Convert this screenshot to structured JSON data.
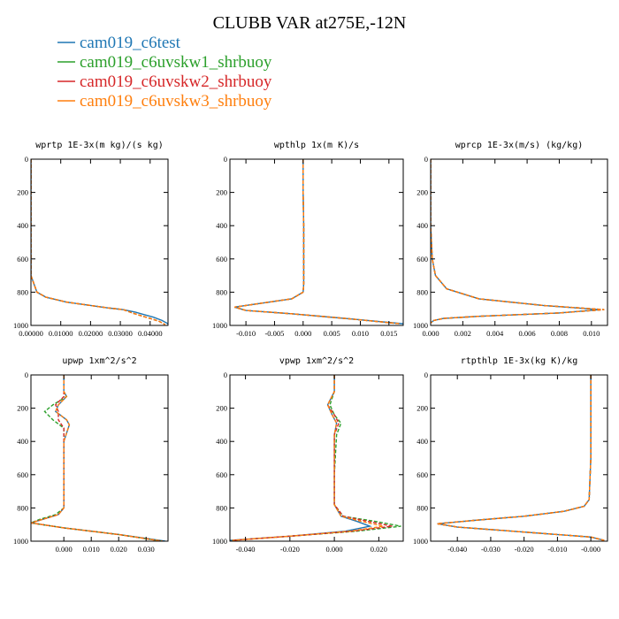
{
  "figure": {
    "title": "CLUBB VAR at275E,-12N",
    "colors": {
      "cam019_c6test": "#1f77b4",
      "cam019_c6uvskw1_shrbuoy": "#2ca02c",
      "cam019_c6uvskw2_shrbuoy": "#d62728",
      "cam019_c6uvskw3_shrbuoy": "#ff7f0e"
    }
  },
  "legend": [
    {
      "label": "cam019_c6test",
      "color": "#1f77b4",
      "dash": "solid"
    },
    {
      "label": "cam019_c6uvskw1_shrbuoy",
      "color": "#2ca02c",
      "dash": "dash"
    },
    {
      "label": "cam019_c6uvskw2_shrbuoy",
      "color": "#d62728",
      "dash": "dash"
    },
    {
      "label": "cam019_c6uvskw3_shrbuoy",
      "color": "#ff7f0e",
      "dash": "dash"
    }
  ],
  "chart_data": [
    {
      "type": "line",
      "title": "wprtp  1E-3x(m kg)/(s kg)",
      "xlim": [
        0.0,
        0.046
      ],
      "ylim": [
        1000,
        0
      ],
      "xticks": [
        0.0,
        0.01,
        0.02,
        0.03,
        0.04
      ],
      "xticklabels": [
        "0.00000",
        "0.01000",
        "0.02000",
        "0.03000",
        "0.04000"
      ],
      "yticks": [
        0,
        200,
        400,
        600,
        800,
        1000
      ],
      "series": [
        {
          "name": "cam019_c6test",
          "x": [
            0.0,
            0.0,
            0.0,
            0.0,
            0.002,
            0.005,
            0.012,
            0.02,
            0.026,
            0.031,
            0.035,
            0.038,
            0.041,
            0.044,
            0.046
          ],
          "y": [
            0,
            200,
            400,
            700,
            800,
            830,
            860,
            880,
            895,
            905,
            920,
            935,
            950,
            970,
            990
          ]
        },
        {
          "name": "cam019_c6uvskw1_shrbuoy",
          "x": [
            0.0,
            0.0,
            0.0,
            0.0,
            0.002,
            0.005,
            0.012,
            0.02,
            0.026,
            0.031,
            0.034,
            0.037,
            0.04,
            0.043,
            0.045
          ],
          "y": [
            0,
            200,
            400,
            700,
            800,
            830,
            860,
            880,
            895,
            905,
            925,
            942,
            958,
            975,
            995
          ]
        },
        {
          "name": "cam019_c6uvskw2_shrbuoy",
          "x": [
            0.0,
            0.0,
            0.0,
            0.0,
            0.002,
            0.005,
            0.012,
            0.02,
            0.026,
            0.031,
            0.034,
            0.037,
            0.04,
            0.043,
            0.045
          ],
          "y": [
            0,
            200,
            400,
            700,
            800,
            830,
            860,
            880,
            895,
            905,
            925,
            942,
            958,
            975,
            995
          ]
        },
        {
          "name": "cam019_c6uvskw3_shrbuoy",
          "x": [
            0.0,
            0.0,
            0.0,
            0.0,
            0.002,
            0.005,
            0.012,
            0.02,
            0.026,
            0.031,
            0.034,
            0.037,
            0.04,
            0.043,
            0.045
          ],
          "y": [
            0,
            200,
            400,
            700,
            800,
            830,
            860,
            880,
            895,
            905,
            925,
            942,
            958,
            975,
            995
          ]
        }
      ]
    },
    {
      "type": "line",
      "title": "wpthlp  1x(m K)/s",
      "xlim": [
        -0.0128,
        0.0175
      ],
      "ylim": [
        1000,
        0
      ],
      "xticks": [
        -0.01,
        -0.005,
        0.0,
        0.005,
        0.01,
        0.015
      ],
      "xticklabels": [
        "-0.010",
        "-0.005",
        "0.000",
        "0.005",
        "0.010",
        "0.015"
      ],
      "yticks": [
        0,
        200,
        400,
        600,
        800,
        1000
      ],
      "series": [
        {
          "name": "cam019_c6test",
          "x": [
            0.0,
            0.0,
            0.0001,
            0.0001,
            0.0001,
            0.0,
            -0.002,
            -0.008,
            -0.012,
            -0.01,
            -0.002,
            0.008,
            0.0175
          ],
          "y": [
            0,
            200,
            400,
            600,
            750,
            800,
            840,
            870,
            890,
            910,
            930,
            960,
            990
          ]
        },
        {
          "name": "cam019_c6uvskw1_shrbuoy",
          "x": [
            0.0,
            0.0,
            0.0001,
            0.0001,
            0.0001,
            0.0,
            -0.002,
            -0.008,
            -0.012,
            -0.01,
            -0.002,
            0.008,
            0.017
          ],
          "y": [
            0,
            200,
            400,
            600,
            750,
            800,
            840,
            870,
            890,
            910,
            930,
            960,
            990
          ]
        },
        {
          "name": "cam019_c6uvskw2_shrbuoy",
          "x": [
            0.0,
            0.0,
            0.0001,
            0.0001,
            0.0001,
            0.0,
            -0.002,
            -0.008,
            -0.012,
            -0.01,
            -0.002,
            0.008,
            0.017
          ],
          "y": [
            0,
            200,
            400,
            600,
            750,
            800,
            840,
            870,
            890,
            910,
            930,
            960,
            990
          ]
        },
        {
          "name": "cam019_c6uvskw3_shrbuoy",
          "x": [
            0.0,
            0.0,
            0.0001,
            0.0001,
            0.0001,
            0.0,
            -0.002,
            -0.008,
            -0.012,
            -0.01,
            -0.002,
            0.008,
            0.017
          ],
          "y": [
            0,
            200,
            400,
            600,
            750,
            800,
            840,
            870,
            890,
            910,
            930,
            960,
            990
          ]
        }
      ]
    },
    {
      "type": "line",
      "title": "wprcp  1E-3x(m/s) (kg/kg)",
      "xlim": [
        0.0,
        0.011
      ],
      "ylim": [
        1000,
        0
      ],
      "xticks": [
        0.0,
        0.002,
        0.004,
        0.006,
        0.008,
        0.01
      ],
      "xticklabels": [
        "0.000",
        "0.002",
        "0.004",
        "0.006",
        "0.008",
        "0.010"
      ],
      "yticks": [
        0,
        200,
        400,
        600,
        800,
        1000
      ],
      "series": [
        {
          "name": "cam019_c6test",
          "x": [
            0.0,
            0.0,
            0.0,
            0.0001,
            0.0003,
            0.001,
            0.003,
            0.007,
            0.0105,
            0.008,
            0.003,
            0.0008,
            0.0002,
            0.0
          ],
          "y": [
            0,
            200,
            400,
            600,
            700,
            780,
            840,
            880,
            905,
            925,
            945,
            958,
            970,
            985
          ]
        },
        {
          "name": "cam019_c6uvskw1_shrbuoy",
          "x": [
            0.0,
            0.0,
            0.0,
            0.0001,
            0.0003,
            0.001,
            0.003,
            0.007,
            0.0108,
            0.008,
            0.003,
            0.0008,
            0.0002,
            0.0
          ],
          "y": [
            0,
            200,
            400,
            600,
            700,
            780,
            840,
            880,
            905,
            925,
            945,
            958,
            970,
            985
          ]
        },
        {
          "name": "cam019_c6uvskw2_shrbuoy",
          "x": [
            0.0,
            0.0,
            0.0,
            0.0001,
            0.0003,
            0.001,
            0.003,
            0.007,
            0.0108,
            0.008,
            0.003,
            0.0008,
            0.0002,
            0.0
          ],
          "y": [
            0,
            200,
            400,
            600,
            700,
            780,
            840,
            880,
            905,
            925,
            945,
            958,
            970,
            985
          ]
        },
        {
          "name": "cam019_c6uvskw3_shrbuoy",
          "x": [
            0.0,
            0.0,
            0.0,
            0.0001,
            0.0003,
            0.001,
            0.003,
            0.007,
            0.0108,
            0.008,
            0.003,
            0.0008,
            0.0002,
            0.0
          ],
          "y": [
            0,
            200,
            400,
            600,
            700,
            780,
            840,
            880,
            905,
            925,
            945,
            958,
            970,
            985
          ]
        }
      ]
    },
    {
      "type": "line",
      "title": "upwp  1xm^2/s^2",
      "xlim": [
        -0.012,
        0.038
      ],
      "ylim": [
        1000,
        0
      ],
      "xticks": [
        0.0,
        0.01,
        0.02,
        0.03
      ],
      "xticklabels": [
        "0.000",
        "0.010",
        "0.020",
        "0.030"
      ],
      "yticks": [
        0,
        200,
        400,
        600,
        800,
        1000
      ],
      "series": [
        {
          "name": "cam019_c6test",
          "x": [
            0.0,
            0.0,
            0.001,
            -0.002,
            -0.003,
            0.001,
            0.002,
            0.0,
            0.0,
            0.0,
            -0.002,
            -0.008,
            -0.012,
            0.0,
            0.02,
            0.037
          ],
          "y": [
            0,
            100,
            130,
            180,
            220,
            270,
            300,
            400,
            600,
            800,
            840,
            870,
            890,
            920,
            960,
            1000
          ]
        },
        {
          "name": "cam019_c6uvskw1_shrbuoy",
          "x": [
            0.0,
            0.0,
            0.001,
            -0.004,
            -0.007,
            -0.004,
            0.0,
            0.0,
            0.0,
            0.0,
            -0.003,
            -0.009,
            -0.012,
            0.0,
            0.02,
            0.036
          ],
          "y": [
            0,
            100,
            130,
            180,
            220,
            270,
            320,
            400,
            600,
            800,
            840,
            870,
            890,
            920,
            960,
            1000
          ]
        },
        {
          "name": "cam019_c6uvskw2_shrbuoy",
          "x": [
            0.0,
            0.0,
            0.0,
            -0.003,
            -0.002,
            -0.002,
            0.0,
            0.0,
            0.0,
            0.0,
            -0.002,
            -0.008,
            -0.012,
            0.0,
            0.02,
            0.036
          ],
          "y": [
            0,
            100,
            130,
            180,
            220,
            270,
            320,
            400,
            600,
            800,
            840,
            870,
            890,
            920,
            960,
            1000
          ]
        },
        {
          "name": "cam019_c6uvskw3_shrbuoy",
          "x": [
            0.0,
            0.0,
            0.001,
            -0.002,
            -0.003,
            0.001,
            0.002,
            0.0,
            0.0,
            0.0,
            -0.002,
            -0.008,
            -0.012,
            0.0,
            0.02,
            0.036
          ],
          "y": [
            0,
            100,
            130,
            180,
            220,
            270,
            300,
            400,
            600,
            800,
            840,
            870,
            890,
            920,
            960,
            1000
          ]
        }
      ]
    },
    {
      "type": "line",
      "title": "vpwp  1xm^2/s^2",
      "xlim": [
        -0.047,
        0.031
      ],
      "ylim": [
        1000,
        0
      ],
      "xticks": [
        -0.04,
        -0.02,
        0.0,
        0.02
      ],
      "xticklabels": [
        "-0.040",
        "-0.020",
        "0.000",
        "0.020"
      ],
      "yticks": [
        0,
        200,
        400,
        600,
        800,
        1000
      ],
      "series": [
        {
          "name": "cam019_c6test",
          "x": [
            0.0,
            0.0,
            -0.003,
            -0.001,
            0.001,
            0.0,
            0.0,
            0.0,
            0.003,
            0.01,
            0.016,
            0.005,
            -0.02,
            -0.047
          ],
          "y": [
            0,
            100,
            180,
            240,
            290,
            360,
            600,
            780,
            850,
            880,
            910,
            940,
            970,
            995
          ]
        },
        {
          "name": "cam019_c6uvskw1_shrbuoy",
          "x": [
            0.0,
            0.0,
            -0.002,
            0.0,
            0.003,
            0.001,
            0.0,
            0.0,
            0.004,
            0.018,
            0.03,
            0.01,
            -0.02,
            -0.046
          ],
          "y": [
            0,
            100,
            180,
            240,
            290,
            360,
            600,
            780,
            850,
            880,
            910,
            940,
            970,
            995
          ]
        },
        {
          "name": "cam019_c6uvskw2_shrbuoy",
          "x": [
            0.0,
            0.0,
            -0.003,
            0.0,
            0.002,
            0.0,
            0.0,
            0.0,
            0.004,
            0.015,
            0.026,
            0.008,
            -0.02,
            -0.046
          ],
          "y": [
            0,
            100,
            180,
            240,
            290,
            360,
            600,
            780,
            850,
            880,
            910,
            940,
            970,
            995
          ]
        },
        {
          "name": "cam019_c6uvskw3_shrbuoy",
          "x": [
            0.0,
            0.0,
            -0.003,
            -0.001,
            0.001,
            0.0,
            0.0,
            0.0,
            0.003,
            0.012,
            0.022,
            0.007,
            -0.02,
            -0.046
          ],
          "y": [
            0,
            100,
            180,
            240,
            290,
            360,
            600,
            780,
            850,
            880,
            910,
            940,
            970,
            995
          ]
        }
      ]
    },
    {
      "type": "line",
      "title": "rtpthlp  1E-3x(kg K)/kg",
      "xlim": [
        -0.048,
        0.005
      ],
      "ylim": [
        1000,
        0
      ],
      "xticks": [
        -0.04,
        -0.03,
        -0.02,
        -0.01,
        0.0
      ],
      "xticklabels": [
        "-0.040",
        "-0.030",
        "-0.020",
        "-0.010",
        "-0.000"
      ],
      "yticks": [
        0,
        200,
        400,
        600,
        800,
        1000
      ],
      "series": [
        {
          "name": "cam019_c6test",
          "x": [
            0.0,
            0.0,
            0.0,
            -0.0005,
            -0.002,
            -0.008,
            -0.02,
            -0.035,
            -0.046,
            -0.04,
            -0.02,
            0.0,
            0.004
          ],
          "y": [
            0,
            200,
            500,
            750,
            790,
            820,
            850,
            875,
            895,
            915,
            945,
            975,
            995
          ]
        },
        {
          "name": "cam019_c6uvskw1_shrbuoy",
          "x": [
            0.0,
            0.0,
            0.0,
            -0.0005,
            -0.002,
            -0.008,
            -0.02,
            -0.035,
            -0.046,
            -0.04,
            -0.02,
            0.0,
            0.004
          ],
          "y": [
            0,
            200,
            500,
            750,
            790,
            820,
            850,
            875,
            895,
            915,
            945,
            975,
            995
          ]
        },
        {
          "name": "cam019_c6uvskw2_shrbuoy",
          "x": [
            0.0,
            0.0,
            0.0,
            -0.0005,
            -0.002,
            -0.008,
            -0.02,
            -0.035,
            -0.046,
            -0.04,
            -0.02,
            0.0,
            0.004
          ],
          "y": [
            0,
            200,
            500,
            750,
            790,
            820,
            850,
            875,
            895,
            915,
            945,
            975,
            995
          ]
        },
        {
          "name": "cam019_c6uvskw3_shrbuoy",
          "x": [
            0.0,
            0.0,
            0.0,
            -0.0005,
            -0.002,
            -0.008,
            -0.02,
            -0.035,
            -0.046,
            -0.04,
            -0.02,
            0.0,
            0.004
          ],
          "y": [
            0,
            200,
            500,
            750,
            790,
            820,
            850,
            875,
            895,
            915,
            945,
            975,
            995
          ]
        }
      ]
    }
  ]
}
